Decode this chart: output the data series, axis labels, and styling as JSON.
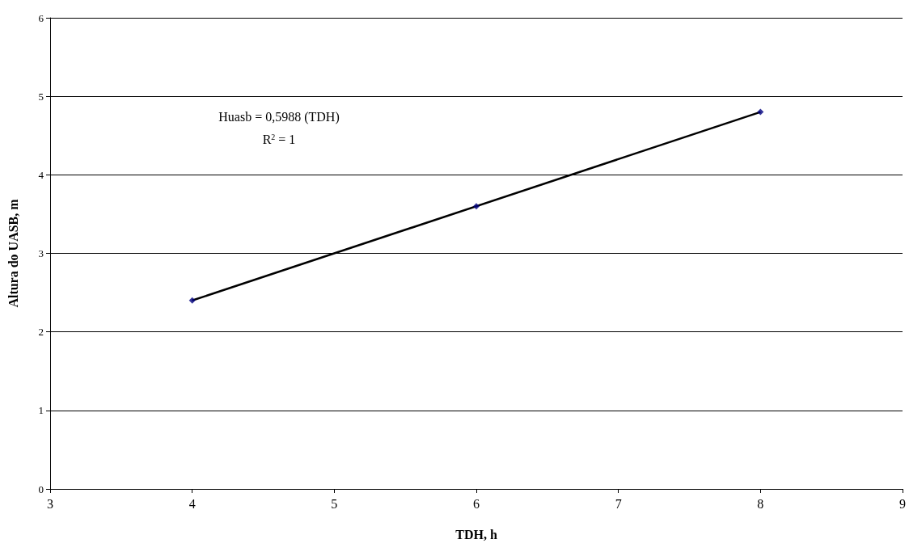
{
  "chart_data": {
    "type": "scatter",
    "xlabel": "TDH, h",
    "ylabel": "Altura do UASB, m",
    "xlim": [
      3,
      9
    ],
    "xticks": [
      3,
      4,
      5,
      6,
      7,
      8,
      9
    ],
    "ylim": [
      0,
      6
    ],
    "yticks": [
      0,
      1,
      2,
      3,
      4,
      5,
      6
    ],
    "grid": "y",
    "series": [
      {
        "color": "#000080",
        "marker": "diamond",
        "x": [
          4,
          6,
          8
        ],
        "values": [
          2.4,
          3.6,
          4.8
        ]
      },
      {
        "type": "line",
        "color": "#000000",
        "marker": "none",
        "line_style": "solid",
        "x": [
          4,
          8
        ],
        "values": [
          2.4,
          4.8
        ]
      }
    ],
    "annotations": [
      "Huasb = 0,5988 (TDH)",
      "R$^{2}$ = 1"
    ]
  }
}
